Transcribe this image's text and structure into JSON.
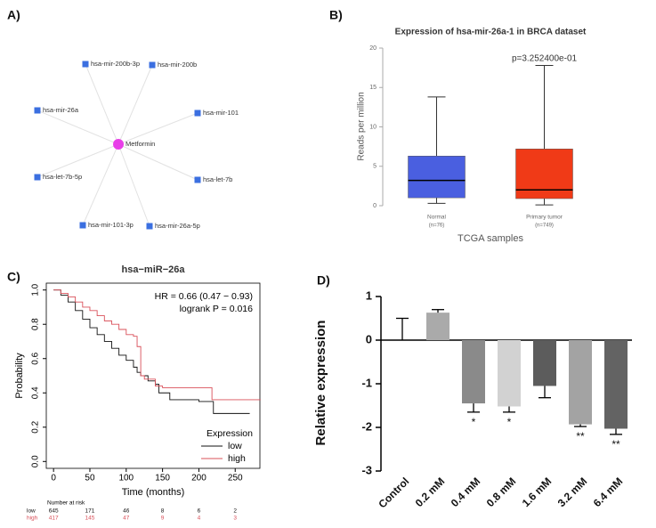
{
  "panel_labels": [
    "A)",
    "B)",
    "C)",
    "D)"
  ],
  "network": {
    "center": "Metformin",
    "nodes": [
      "hsa-mir-200b-3p",
      "hsa-mir-200b",
      "hsa-mir-26a",
      "hsa-mir-101",
      "hsa-let-7b-5p",
      "hsa-let-7b",
      "hsa-mir-101-3p",
      "hsa-mir-26a-5p"
    ]
  },
  "chart_data": [
    {
      "type": "box",
      "title": "Expression of hsa-mir-26a-1 in BRCA dataset",
      "y_label": "Reads per million",
      "x_label": "TCGA samples",
      "categories": [
        "Normal",
        "Primary tumor"
      ],
      "category_notes": [
        "(n=76)",
        "(n=749)"
      ],
      "boxes": [
        {
          "min": 0.3,
          "q1": 1.0,
          "median": 3.2,
          "q3": 6.3,
          "max": 13.8,
          "color": "#4a5fe0"
        },
        {
          "min": 0.1,
          "q1": 0.9,
          "median": 2.0,
          "q3": 7.2,
          "max": 17.8,
          "color": "#f03a17"
        }
      ],
      "annotation": "p=3.252400e-01",
      "ylim": [
        0,
        20
      ],
      "yticks": [
        0,
        5,
        10,
        15,
        20
      ]
    },
    {
      "type": "line",
      "step": true,
      "title": "hsa−miR−26a",
      "annotations": [
        "HR = 0.66 (0.47 − 0.93)",
        "logrank P = 0.016"
      ],
      "x_label": "Time (months)",
      "y_label": "Probability",
      "xlim": [
        -10,
        284
      ],
      "ylim": [
        -0.04,
        1.04
      ],
      "xticks": [
        0,
        50,
        100,
        150,
        200,
        250
      ],
      "yticks": [
        {
          "value": 0,
          "label": "0.0"
        },
        {
          "value": 0.2,
          "label": "0.2"
        },
        {
          "value": 0.4,
          "label": "0.4"
        },
        {
          "value": 0.6,
          "label": "0.6"
        },
        {
          "value": 0.8,
          "label": "0.8"
        },
        {
          "value": 1,
          "label": "1.0"
        }
      ],
      "legend_title": "Expression",
      "legend": "bottom-right",
      "series": [
        {
          "name": "low",
          "color": "#111111",
          "x": [
            0,
            10,
            20,
            30,
            40,
            50,
            60,
            70,
            80,
            90,
            100,
            110,
            115,
            120,
            130,
            140,
            145,
            160,
            200,
            220,
            240,
            270
          ],
          "y": [
            1,
            0.97,
            0.93,
            0.88,
            0.83,
            0.78,
            0.74,
            0.7,
            0.66,
            0.62,
            0.59,
            0.55,
            0.52,
            0.5,
            0.47,
            0.45,
            0.4,
            0.36,
            0.35,
            0.28,
            0.28,
            0.28
          ]
        },
        {
          "name": "high",
          "color": "#d9505a",
          "x": [
            0,
            10,
            20,
            30,
            40,
            50,
            60,
            70,
            80,
            90,
            100,
            110,
            115,
            120,
            125,
            140,
            150,
            218,
            285
          ],
          "y": [
            1,
            0.98,
            0.96,
            0.93,
            0.9,
            0.88,
            0.85,
            0.82,
            0.8,
            0.77,
            0.74,
            0.73,
            0.67,
            0.5,
            0.48,
            0.44,
            0.43,
            0.36,
            0.36
          ]
        }
      ],
      "risk_table": {
        "title": "Number at risk",
        "rows": [
          {
            "name": "low",
            "values": [
              645,
              171,
              46,
              8,
              6,
              2
            ]
          },
          {
            "name": "high",
            "values": [
              417,
              145,
              47,
              9,
              4,
              3
            ]
          }
        ]
      }
    },
    {
      "type": "bar",
      "y_label": "Relative expression",
      "categories": [
        "Control",
        "0.2 mM",
        "0.4 mM",
        "0.8 mM",
        "1.6 mM",
        "3.2 mM",
        "6.4 mM"
      ],
      "values": [
        0,
        0.63,
        -1.45,
        -1.52,
        -1.05,
        -1.93,
        -2.03
      ],
      "errors": [
        0.5,
        0.07,
        0.2,
        0.13,
        0.27,
        0.05,
        0.13
      ],
      "colors": [
        "#ffffff",
        "#aaaaaa",
        "#8a8a8a",
        "#d2d2d2",
        "#5c5c5c",
        "#a3a3a3",
        "#636363"
      ],
      "significance": [
        null,
        null,
        "*",
        "*",
        null,
        "**",
        "**"
      ],
      "ylim": [
        -3,
        1
      ],
      "yticks": [
        -3,
        -2,
        -1,
        0,
        1
      ]
    }
  ]
}
